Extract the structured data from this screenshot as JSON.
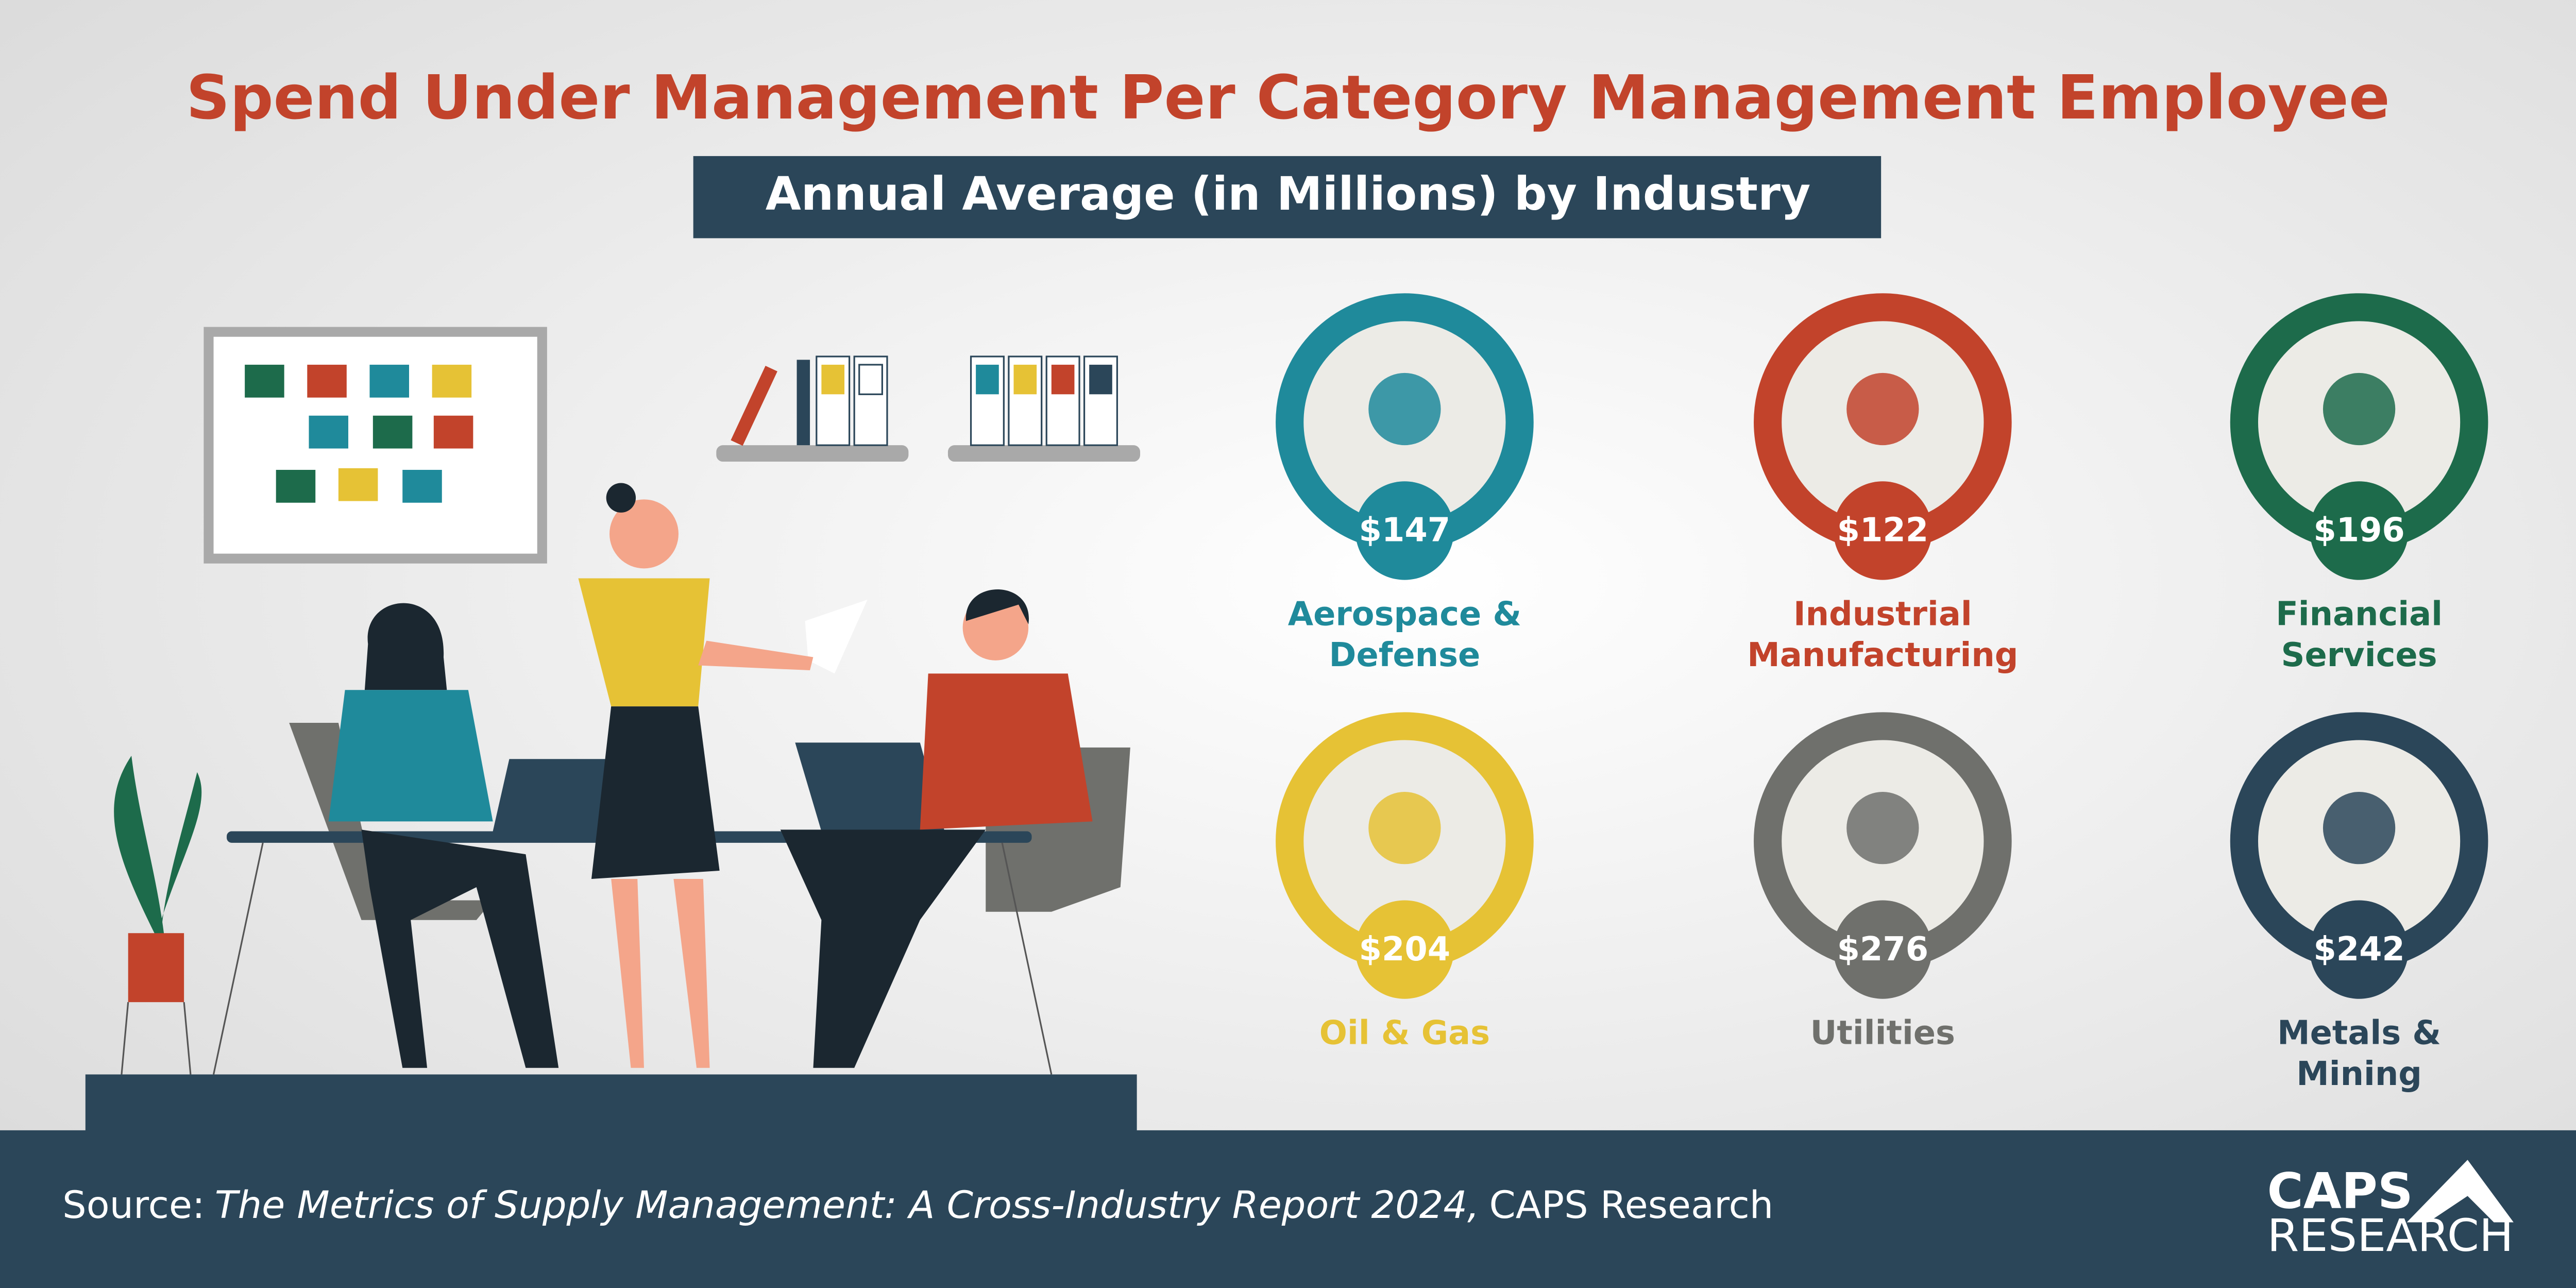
{
  "title": "Spend Under Management Per Category Management Employee",
  "subtitle": "Annual Average (in Millions) by Industry",
  "industries": [
    {
      "label": [
        "Aerospace &",
        "Defense"
      ],
      "value": "$147",
      "color": "#1f8a9b"
    },
    {
      "label": [
        "Industrial",
        "Manufacturing"
      ],
      "value": "$122",
      "color": "#c2432b"
    },
    {
      "label": [
        "Financial",
        "Services"
      ],
      "value": "$196",
      "color": "#1d6b4b"
    },
    {
      "label": [
        "Oil & Gas"
      ],
      "value": "$204",
      "color": "#e6c235"
    },
    {
      "label": [
        "Utilities"
      ],
      "value": "$276",
      "color": "#6f706c"
    },
    {
      "label": [
        "Metals &",
        "Mining"
      ],
      "value": "$242",
      "color": "#2b4659"
    }
  ],
  "source": {
    "prefix": "Source:",
    "title": "The Metrics of Supply Management: A Cross-Industry Report 2024,",
    "suffix": "CAPS Research"
  },
  "logo": {
    "top": "CAPS",
    "bottom": "RESEARCH"
  }
}
